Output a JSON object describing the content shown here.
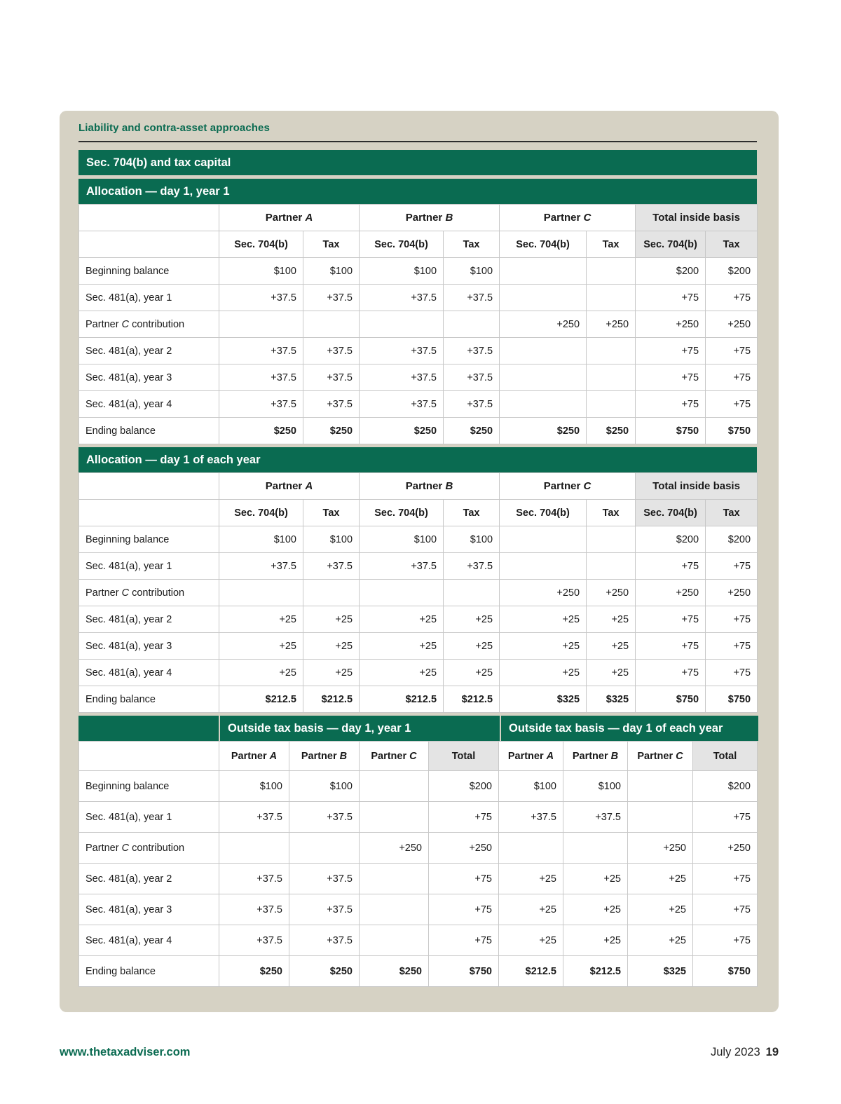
{
  "page": {
    "kicker": "Liability and contra-asset approaches",
    "main_title": "Sec. 704(b) and tax capital",
    "footer_left": "www.thetaxadviser.com",
    "footer_month": "July 2023",
    "footer_page": "19"
  },
  "colors": {
    "header_green": "#0a6b51",
    "card_beige": "#d6d2c4",
    "shade_gray": "#ededed",
    "text": "#1a1a1a"
  },
  "capital_tables": [
    {
      "title": "Allocation — day 1, year 1",
      "groups": [
        {
          "pre": "Partner ",
          "it": "A"
        },
        {
          "pre": "Partner ",
          "it": "B"
        },
        {
          "pre": "Partner ",
          "it": "C"
        },
        {
          "pre": "Total inside basis"
        }
      ],
      "subheads": [
        "Sec. 704(b)",
        "Tax",
        "Sec. 704(b)",
        "Tax",
        "Sec. 704(b)",
        "Tax",
        "Sec. 704(b)",
        "Tax"
      ],
      "rows": [
        {
          "label": "Beginning balance",
          "cells": [
            "$100",
            "$100",
            "$100",
            "$100",
            "",
            "",
            "$200",
            "$200"
          ]
        },
        {
          "label": "Sec. 481(a), year 1",
          "cells": [
            "+37.5",
            "+37.5",
            "+37.5",
            "+37.5",
            "",
            "",
            "+75",
            "+75"
          ]
        },
        {
          "label": {
            "pre": "Partner ",
            "it": "C",
            "post": " contribution"
          },
          "cells": [
            "",
            "",
            "",
            "",
            "+250",
            "+250",
            "+250",
            "+250"
          ]
        },
        {
          "label": "Sec. 481(a), year 2",
          "cells": [
            "+37.5",
            "+37.5",
            "+37.5",
            "+37.5",
            "",
            "",
            "+75",
            "+75"
          ]
        },
        {
          "label": "Sec. 481(a), year 3",
          "cells": [
            "+37.5",
            "+37.5",
            "+37.5",
            "+37.5",
            "",
            "",
            "+75",
            "+75"
          ]
        },
        {
          "label": "Sec. 481(a), year 4",
          "cells": [
            "+37.5",
            "+37.5",
            "+37.5",
            "+37.5",
            "",
            "",
            "+75",
            "+75"
          ]
        },
        {
          "label": "Ending balance",
          "bold": true,
          "cells": [
            "$250",
            "$250",
            "$250",
            "$250",
            "$250",
            "$250",
            "$750",
            "$750"
          ]
        }
      ]
    },
    {
      "title": "Allocation — day 1 of each year",
      "groups": [
        {
          "pre": "Partner ",
          "it": "A"
        },
        {
          "pre": "Partner ",
          "it": "B"
        },
        {
          "pre": "Partner ",
          "it": "C"
        },
        {
          "pre": "Total inside basis"
        }
      ],
      "subheads": [
        "Sec. 704(b)",
        "Tax",
        "Sec. 704(b)",
        "Tax",
        "Sec. 704(b)",
        "Tax",
        "Sec. 704(b)",
        "Tax"
      ],
      "rows": [
        {
          "label": "Beginning balance",
          "cells": [
            "$100",
            "$100",
            "$100",
            "$100",
            "",
            "",
            "$200",
            "$200"
          ]
        },
        {
          "label": "Sec. 481(a), year 1",
          "cells": [
            "+37.5",
            "+37.5",
            "+37.5",
            "+37.5",
            "",
            "",
            "+75",
            "+75"
          ]
        },
        {
          "label": {
            "pre": "Partner ",
            "it": "C",
            "post": " contribution"
          },
          "cells": [
            "",
            "",
            "",
            "",
            "+250",
            "+250",
            "+250",
            "+250"
          ]
        },
        {
          "label": "Sec. 481(a), year 2",
          "cells": [
            "+25",
            "+25",
            "+25",
            "+25",
            "+25",
            "+25",
            "+75",
            "+75"
          ]
        },
        {
          "label": "Sec. 481(a), year 3",
          "cells": [
            "+25",
            "+25",
            "+25",
            "+25",
            "+25",
            "+25",
            "+75",
            "+75"
          ]
        },
        {
          "label": "Sec. 481(a), year 4",
          "cells": [
            "+25",
            "+25",
            "+25",
            "+25",
            "+25",
            "+25",
            "+75",
            "+75"
          ]
        },
        {
          "label": "Ending balance",
          "bold": true,
          "cells": [
            "$212.5",
            "$212.5",
            "$212.5",
            "$212.5",
            "$325",
            "$325",
            "$750",
            "$750"
          ]
        }
      ]
    }
  ],
  "outside": {
    "titles": [
      "Outside tax basis — day 1, year 1",
      "Outside tax basis — day 1 of each year"
    ],
    "subheads": [
      {
        "pre": "Partner ",
        "it": "A"
      },
      {
        "pre": "Partner ",
        "it": "B"
      },
      {
        "pre": "Partner ",
        "it": "C"
      },
      "Total",
      {
        "pre": "Partner ",
        "it": "A"
      },
      {
        "pre": "Partner ",
        "it": "B"
      },
      {
        "pre": "Partner ",
        "it": "C"
      },
      "Total"
    ],
    "rows": [
      {
        "label": "Beginning balance",
        "cells": [
          "$100",
          "$100",
          "",
          "$200",
          "$100",
          "$100",
          "",
          "$200"
        ]
      },
      {
        "label": "Sec. 481(a), year 1",
        "cells": [
          "+37.5",
          "+37.5",
          "",
          "+75",
          "+37.5",
          "+37.5",
          "",
          "+75"
        ]
      },
      {
        "label": {
          "pre": "Partner ",
          "it": "C",
          "post": " contribution"
        },
        "cells": [
          "",
          "",
          "+250",
          "+250",
          "",
          "",
          "+250",
          "+250"
        ]
      },
      {
        "label": "Sec. 481(a), year 2",
        "cells": [
          "+37.5",
          "+37.5",
          "",
          "+75",
          "+25",
          "+25",
          "+25",
          "+75"
        ]
      },
      {
        "label": "Sec. 481(a), year 3",
        "cells": [
          "+37.5",
          "+37.5",
          "",
          "+75",
          "+25",
          "+25",
          "+25",
          "+75"
        ]
      },
      {
        "label": "Sec. 481(a), year 4",
        "cells": [
          "+37.5",
          "+37.5",
          "",
          "+75",
          "+25",
          "+25",
          "+25",
          "+75"
        ]
      },
      {
        "label": "Ending balance",
        "bold": true,
        "cells": [
          "$250",
          "$250",
          "$250",
          "$750",
          "$212.5",
          "$212.5",
          "$325",
          "$750"
        ]
      }
    ]
  }
}
